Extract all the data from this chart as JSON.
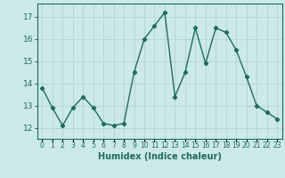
{
  "x": [
    0,
    1,
    2,
    3,
    4,
    5,
    6,
    7,
    8,
    9,
    10,
    11,
    12,
    13,
    14,
    15,
    16,
    17,
    18,
    19,
    20,
    21,
    22,
    23
  ],
  "y": [
    13.8,
    12.9,
    12.1,
    12.9,
    13.4,
    12.9,
    12.2,
    12.1,
    12.2,
    14.5,
    16.0,
    16.6,
    17.2,
    13.4,
    14.5,
    16.5,
    14.9,
    16.5,
    16.3,
    15.5,
    14.3,
    13.0,
    12.7,
    12.4
  ],
  "xlabel": "Humidex (Indice chaleur)",
  "line_color": "#1f6b5e",
  "marker": "D",
  "marker_size": 2.2,
  "background_color": "#cce9e9",
  "grid_color": "#b8d4d4",
  "ylim": [
    11.5,
    17.6
  ],
  "xlim": [
    -0.5,
    23.5
  ],
  "yticks": [
    12,
    13,
    14,
    15,
    16,
    17
  ],
  "linewidth": 1.0
}
